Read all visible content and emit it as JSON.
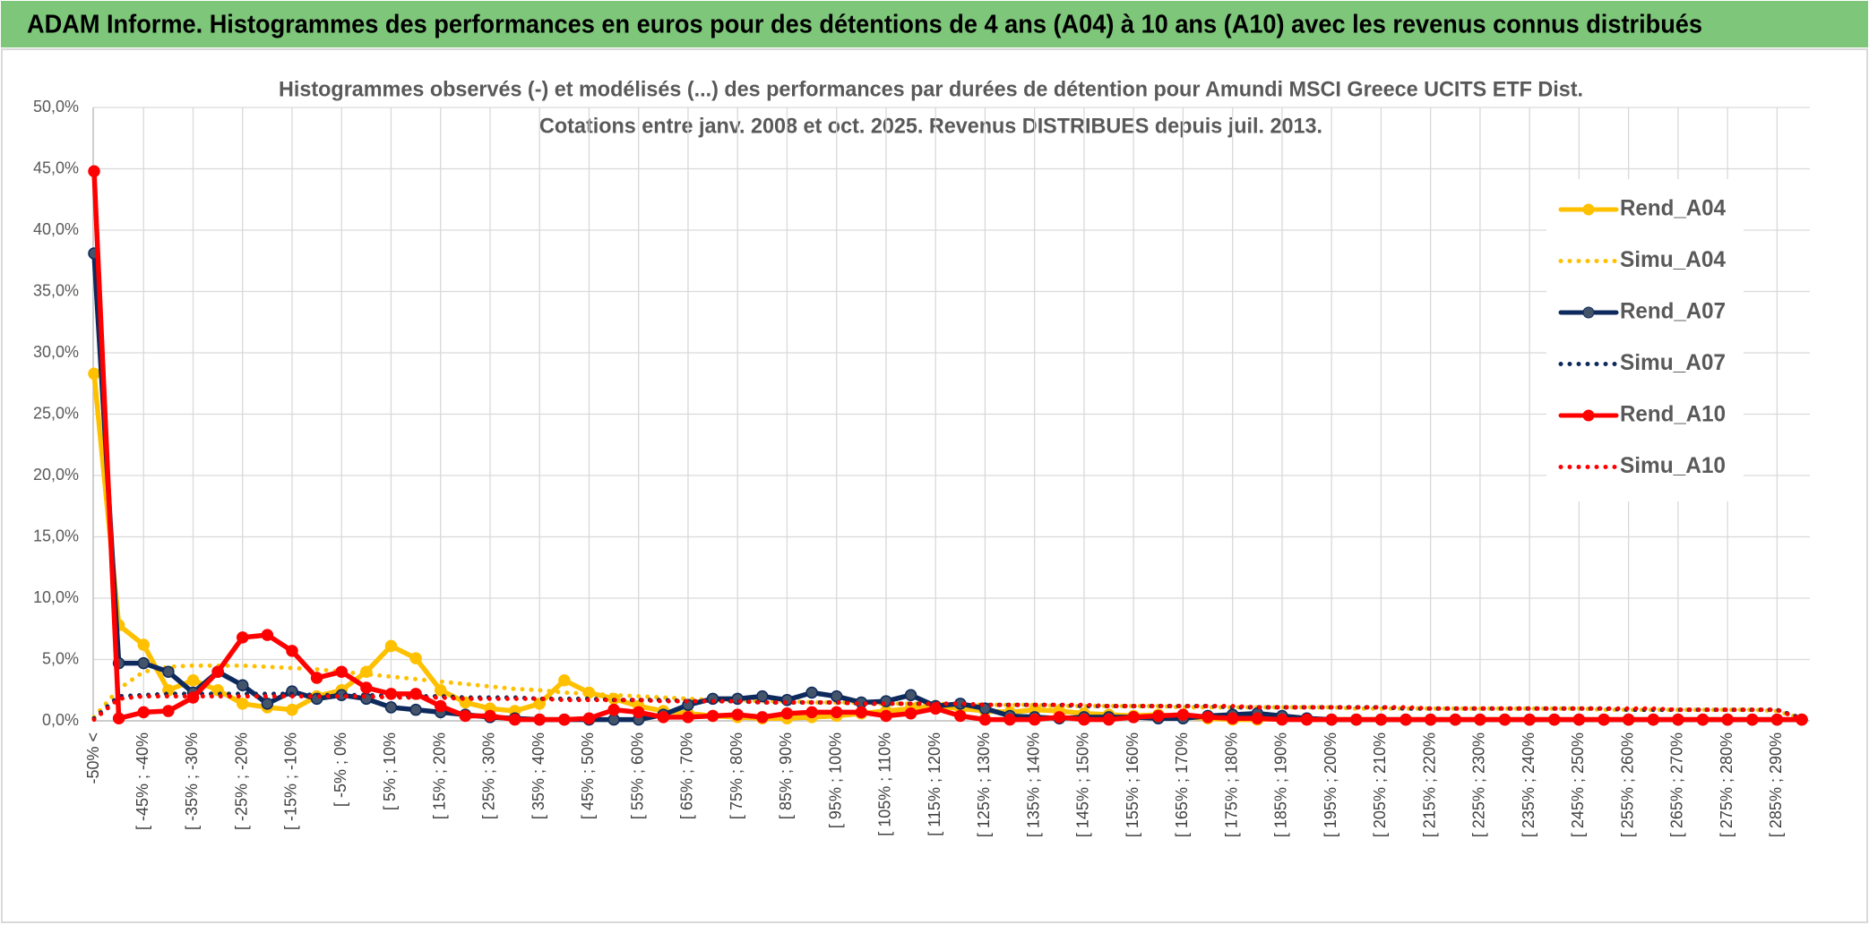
{
  "header": {
    "title": "ADAM Informe. Histogrammes des performances en euros pour des détentions de 4 ans (A04) à 10 ans (A10) avec les revenus connus distribués"
  },
  "chart_data": {
    "type": "line",
    "title": "Histogrammes observés (-) et modélisés (...) des performances par durées de détention pour Amundi MSCI Greece UCITS ETF Dist.",
    "subtitle": "Cotations entre janv. 2008 et oct. 2025. Revenus DISTRIBUES depuis juil. 2013.",
    "categories": [
      "-50% <",
      null,
      "[ -45% ; -40%",
      null,
      "[ -35% ; -30%",
      null,
      "[ -25% ; -20%",
      null,
      "[ -15% ; -10%",
      null,
      "[ -5% ; 0%",
      null,
      "[ 5% ; 10%",
      null,
      "[ 15% ; 20%",
      null,
      "[ 25% ; 30%",
      null,
      "[ 35% ; 40%",
      null,
      "[ 45% ; 50%",
      null,
      "[ 55% ; 60%",
      null,
      "[ 65% ; 70%",
      null,
      "[ 75% ; 80%",
      null,
      "[ 85% ; 90%",
      null,
      "[ 95% ; 100%",
      null,
      "[ 105% ; 110%",
      null,
      "[ 115% ; 120%",
      null,
      "[ 125% ; 130%",
      null,
      "[ 135% ; 140%",
      null,
      "[ 145% ; 150%",
      null,
      "[ 155% ; 160%",
      null,
      "[ 165% ; 170%",
      null,
      "[ 175% ; 180%",
      null,
      "[ 185% ; 190%",
      null,
      "[ 195% ; 200%",
      null,
      "[ 205% ; 210%",
      null,
      "[ 215% ; 220%",
      null,
      "[ 225% ; 230%",
      null,
      "[ 235% ; 240%",
      null,
      "[ 245% ; 250%",
      null,
      "[ 255% ; 260%",
      null,
      "[ 265% ; 270%",
      null,
      "[ 275% ; 280%",
      null,
      "[ 285% ; 290%",
      null
    ],
    "series": [
      {
        "name": "Rend_A04",
        "color": "#ffc000",
        "style": "solid",
        "markers": true,
        "values": [
          28.3,
          7.8,
          6.2,
          2.5,
          3.3,
          2.5,
          1.4,
          1.1,
          0.9,
          2.0,
          2.5,
          4.0,
          6.1,
          5.1,
          2.5,
          1.5,
          1.0,
          0.8,
          1.4,
          3.3,
          2.3,
          1.8,
          1.2,
          0.8,
          0.6,
          0.4,
          0.3,
          0.2,
          0.2,
          0.3,
          0.4,
          0.6,
          0.8,
          1.0,
          1.2,
          1.0,
          0.8,
          0.7,
          0.9,
          0.8,
          0.6,
          0.5,
          0.4,
          0.5,
          0.3,
          0.2,
          0.1,
          0.1,
          0.2,
          0.1,
          0.1,
          0.1,
          0.1,
          0.1,
          0.1,
          0.1,
          0.1,
          0.1,
          0.1,
          0.1,
          0.1,
          0.1,
          0.1,
          0.1,
          0.1,
          0.1,
          0.1,
          0.1,
          0.1,
          0.1
        ]
      },
      {
        "name": "Simu_A04",
        "color": "#ffc000",
        "style": "dotted",
        "markers": false,
        "values": [
          0.3,
          2.6,
          4.0,
          4.4,
          4.5,
          4.5,
          4.5,
          4.4,
          4.3,
          4.2,
          4.0,
          3.8,
          3.6,
          3.4,
          3.2,
          3.0,
          2.8,
          2.6,
          2.5,
          2.3,
          2.2,
          2.1,
          2.0,
          1.9,
          1.8,
          1.7,
          1.7,
          1.6,
          1.6,
          1.5,
          1.5,
          1.5,
          1.4,
          1.4,
          1.4,
          1.3,
          1.3,
          1.3,
          1.3,
          1.2,
          1.2,
          1.2,
          1.2,
          1.2,
          1.1,
          1.1,
          1.1,
          1.1,
          1.1,
          1.1,
          1.1,
          1.0,
          1.0,
          1.0,
          1.0,
          1.0,
          1.0,
          1.0,
          1.0,
          1.0,
          1.0,
          0.9,
          0.9,
          0.9,
          0.9,
          0.9,
          0.9,
          0.9,
          0.8,
          0.2
        ]
      },
      {
        "name": "Rend_A07",
        "color": "#0e2a5c",
        "style": "solid",
        "markers": true,
        "values": [
          38.1,
          4.7,
          4.7,
          4.0,
          2.3,
          4.0,
          2.9,
          1.4,
          2.4,
          1.8,
          2.1,
          1.8,
          1.1,
          0.9,
          0.7,
          0.5,
          0.3,
          0.2,
          0.1,
          0.1,
          0.1,
          0.1,
          0.1,
          0.5,
          1.3,
          1.8,
          1.8,
          2.0,
          1.7,
          2.3,
          2.0,
          1.5,
          1.6,
          2.1,
          1.2,
          1.4,
          1.0,
          0.4,
          0.3,
          0.2,
          0.3,
          0.3,
          0.3,
          0.2,
          0.2,
          0.4,
          0.5,
          0.6,
          0.4,
          0.2,
          0.1,
          0.1,
          0.1,
          0.1,
          0.1,
          0.1,
          0.1,
          0.1,
          0.1,
          0.1,
          0.1,
          0.1,
          0.1,
          0.1,
          0.1,
          0.1,
          0.1,
          0.1,
          0.1,
          0.1
        ]
      },
      {
        "name": "Simu_A07",
        "color": "#0e2a5c",
        "style": "dotted",
        "markers": false,
        "values": [
          0.2,
          2.0,
          2.1,
          2.2,
          2.2,
          2.2,
          2.2,
          2.2,
          2.2,
          2.1,
          2.1,
          2.1,
          2.0,
          2.0,
          2.0,
          1.9,
          1.9,
          1.9,
          1.8,
          1.8,
          1.8,
          1.7,
          1.7,
          1.7,
          1.6,
          1.6,
          1.6,
          1.5,
          1.5,
          1.5,
          1.5,
          1.4,
          1.4,
          1.4,
          1.4,
          1.3,
          1.3,
          1.3,
          1.3,
          1.3,
          1.2,
          1.2,
          1.2,
          1.2,
          1.2,
          1.2,
          1.1,
          1.1,
          1.1,
          1.1,
          1.1,
          1.1,
          1.1,
          1.0,
          1.0,
          1.0,
          1.0,
          1.0,
          1.0,
          1.0,
          1.0,
          1.0,
          0.9,
          0.9,
          0.9,
          0.9,
          0.9,
          0.9,
          0.9,
          0.2
        ]
      },
      {
        "name": "Rend_A10",
        "color": "#ff0000",
        "style": "solid",
        "markers": true,
        "values": [
          44.8,
          0.2,
          0.7,
          0.8,
          1.9,
          4.0,
          6.8,
          7.0,
          5.7,
          3.5,
          4.0,
          2.7,
          2.2,
          2.2,
          1.2,
          0.4,
          0.4,
          0.1,
          0.1,
          0.1,
          0.2,
          0.9,
          0.7,
          0.3,
          0.3,
          0.4,
          0.5,
          0.3,
          0.6,
          0.7,
          0.7,
          0.7,
          0.4,
          0.6,
          1.0,
          0.4,
          0.1,
          0.1,
          0.1,
          0.3,
          0.1,
          0.1,
          0.3,
          0.4,
          0.5,
          0.3,
          0.2,
          0.2,
          0.1,
          0.1,
          0.1,
          0.1,
          0.1,
          0.1,
          0.1,
          0.1,
          0.1,
          0.1,
          0.1,
          0.1,
          0.1,
          0.1,
          0.1,
          0.1,
          0.1,
          0.1,
          0.1,
          0.1,
          0.1,
          0.1
        ]
      },
      {
        "name": "Simu_A10",
        "color": "#ff0000",
        "style": "dotted",
        "markers": false,
        "values": [
          0.1,
          1.8,
          2.0,
          2.0,
          2.0,
          2.0,
          2.0,
          2.0,
          2.0,
          2.0,
          2.0,
          2.0,
          1.9,
          1.9,
          1.9,
          1.8,
          1.8,
          1.8,
          1.8,
          1.7,
          1.7,
          1.7,
          1.7,
          1.6,
          1.6,
          1.6,
          1.6,
          1.5,
          1.5,
          1.5,
          1.5,
          1.4,
          1.4,
          1.4,
          1.4,
          1.4,
          1.3,
          1.3,
          1.3,
          1.3,
          1.3,
          1.2,
          1.2,
          1.2,
          1.2,
          1.2,
          1.2,
          1.1,
          1.1,
          1.1,
          1.1,
          1.1,
          1.1,
          1.1,
          1.0,
          1.0,
          1.0,
          1.0,
          1.0,
          1.0,
          1.0,
          1.0,
          1.0,
          1.0,
          0.9,
          0.9,
          0.9,
          0.9,
          0.9,
          0.1
        ]
      }
    ],
    "ylim": [
      0,
      50
    ],
    "yticks": [
      {
        "value": 0,
        "label": "0,0%"
      },
      {
        "value": 5,
        "label": "5,0%"
      },
      {
        "value": 10,
        "label": "10,0%"
      },
      {
        "value": 15,
        "label": "15,0%"
      },
      {
        "value": 20,
        "label": "20,0%"
      },
      {
        "value": 25,
        "label": "25,0%"
      },
      {
        "value": 30,
        "label": "30,0%"
      },
      {
        "value": 35,
        "label": "35,0%"
      },
      {
        "value": 40,
        "label": "40,0%"
      },
      {
        "value": 45,
        "label": "45,0%"
      },
      {
        "value": 50,
        "label": "50,0%"
      }
    ],
    "grid": true,
    "legend": "right"
  }
}
